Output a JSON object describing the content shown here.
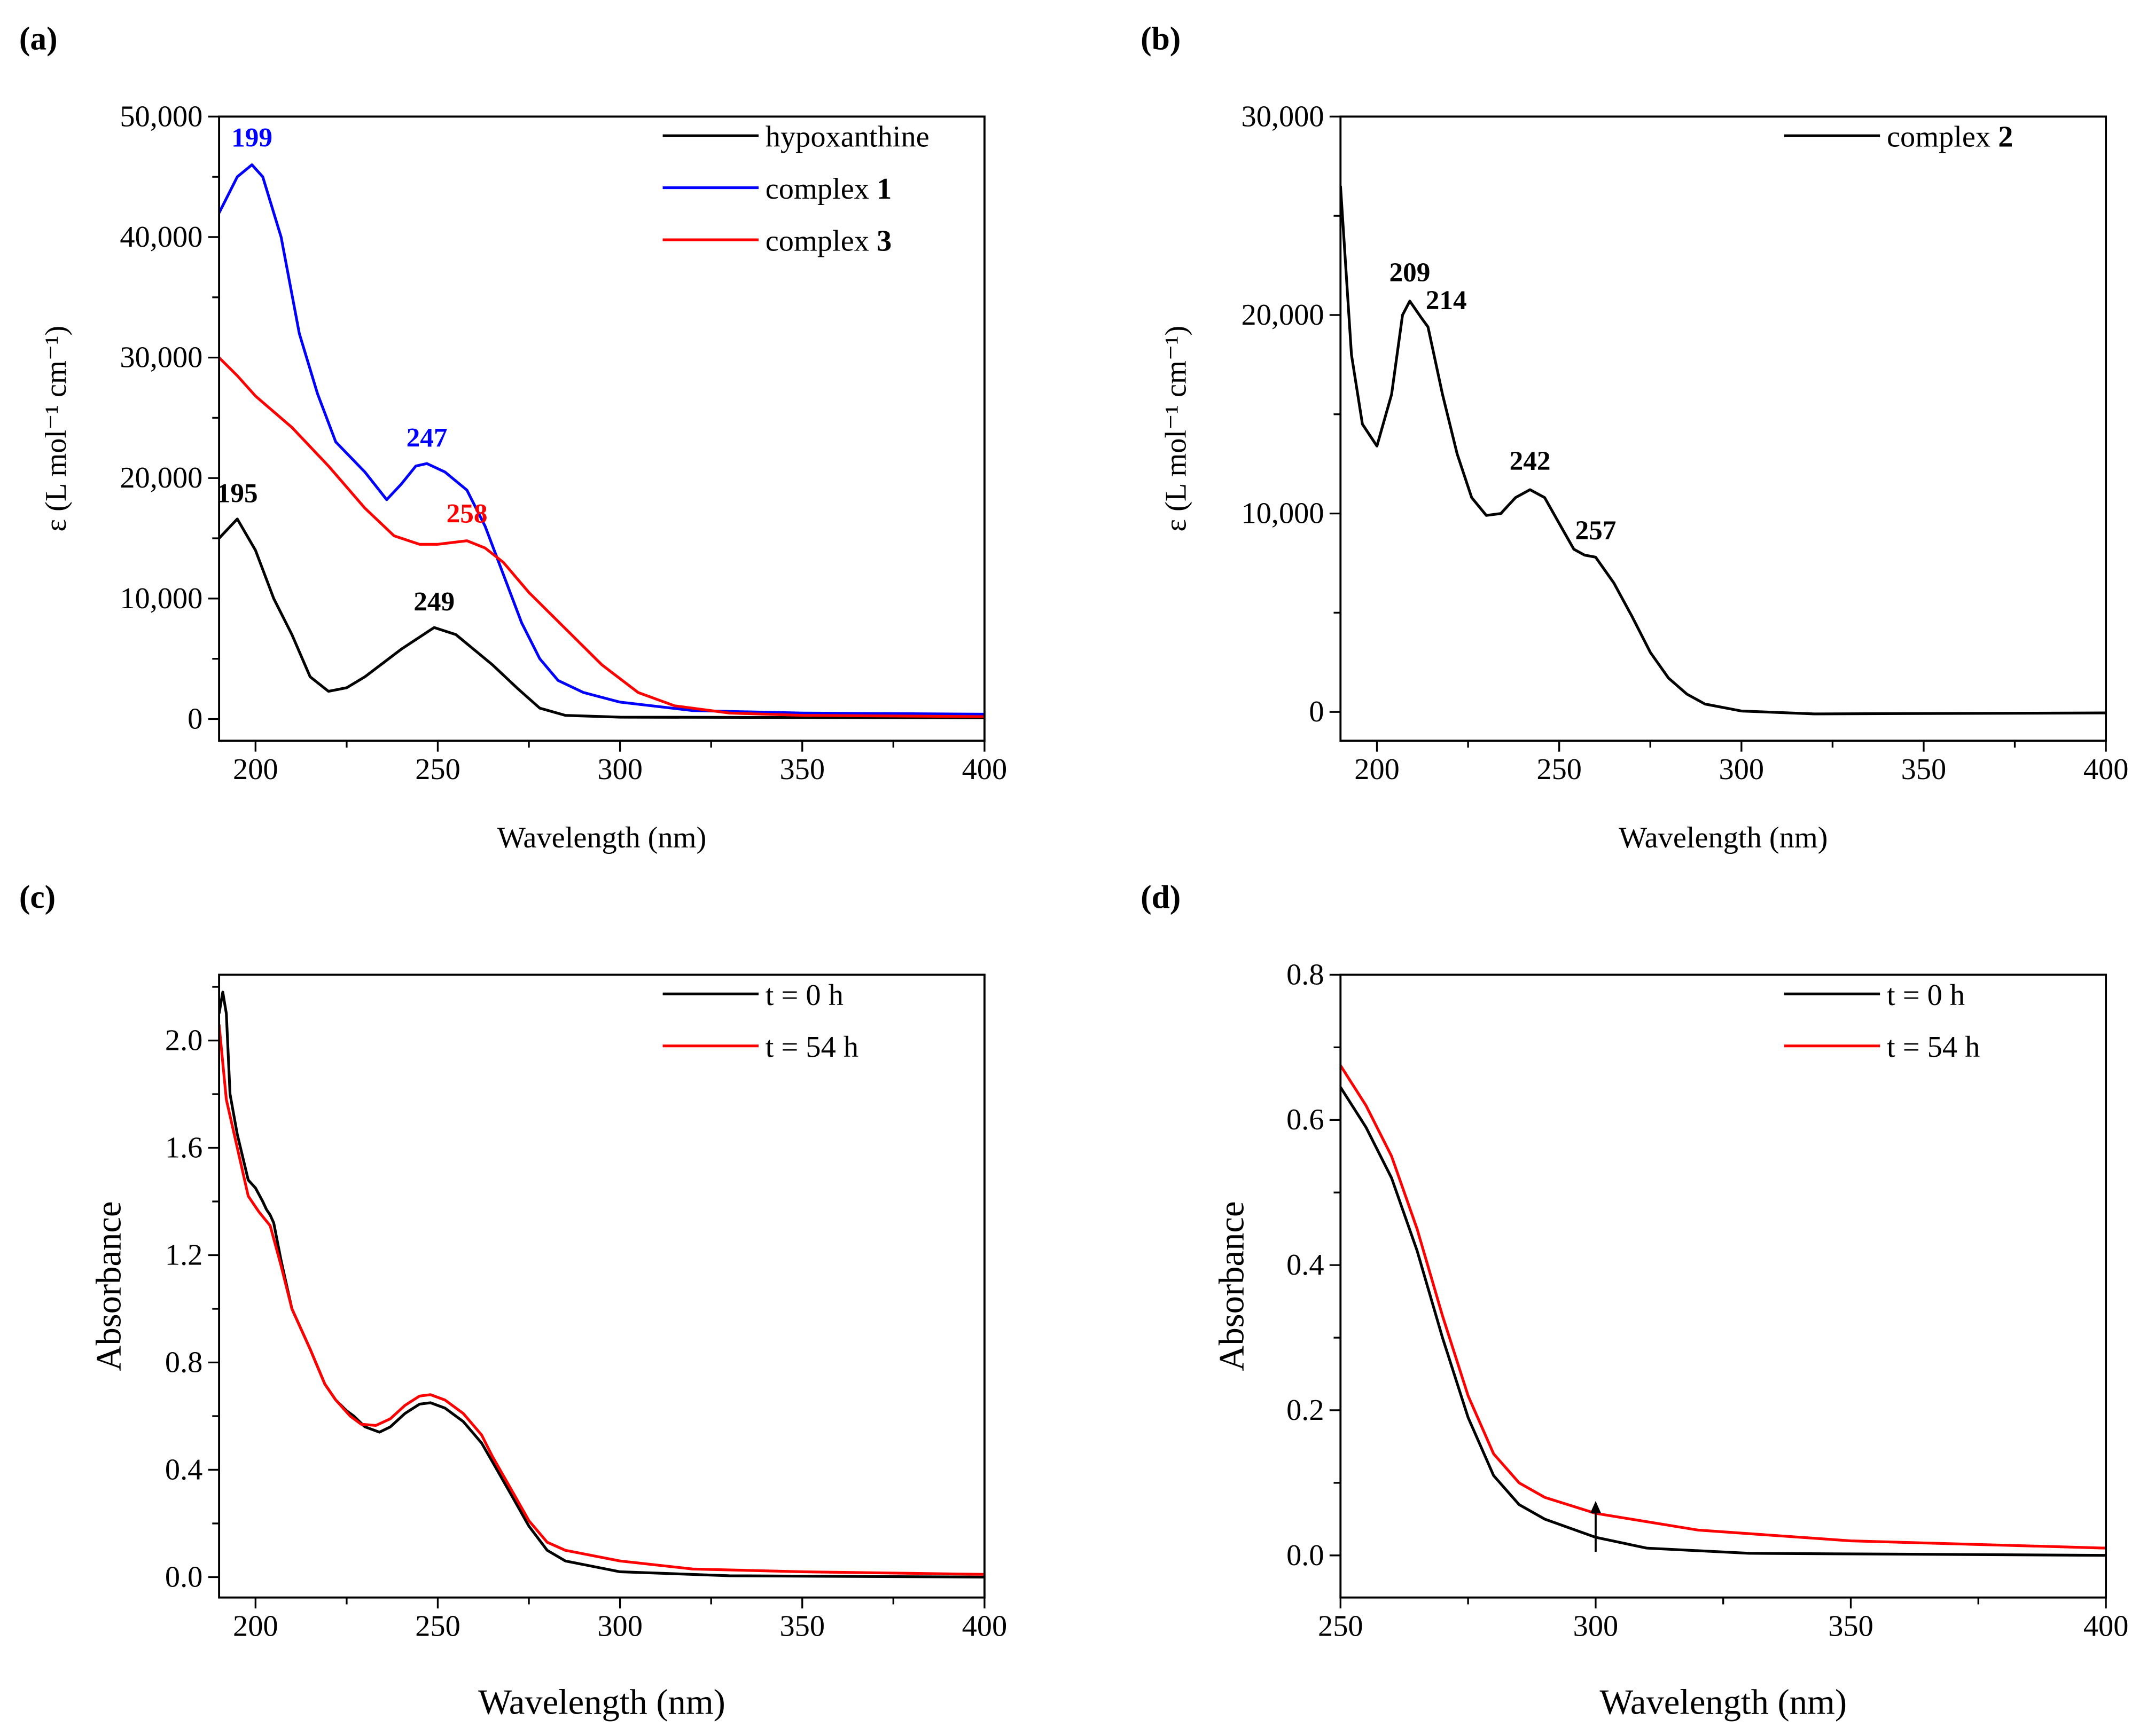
{
  "chart_data": [
    {
      "panel": "(a)",
      "type": "line",
      "xlabel": "Wavelength (nm)",
      "ylabel": "ε (L mol⁻¹ cm⁻¹)",
      "xlim": [
        190,
        400
      ],
      "ylim": [
        -1800,
        50000
      ],
      "xticks": [
        200,
        250,
        300,
        350,
        400
      ],
      "xminor": 25,
      "yticks": [
        0,
        10000,
        20000,
        30000,
        40000,
        50000
      ],
      "yminor": 5000,
      "ytick_labels": [
        "0",
        "10,000",
        "20,000",
        "30,000",
        "40,000",
        "50,000"
      ],
      "legend_position": "top-right",
      "series": [
        {
          "name": "hypoxanthine",
          "bold": "",
          "color": "#000000",
          "x": [
            190,
            195,
            200,
            205,
            210,
            215,
            220,
            225,
            230,
            240,
            249,
            255,
            265,
            272,
            278,
            285,
            300,
            400
          ],
          "y": [
            15000,
            16600,
            14000,
            10000,
            7000,
            3500,
            2300,
            2600,
            3500,
            5800,
            7600,
            7000,
            4500,
            2500,
            900,
            300,
            150,
            100
          ]
        },
        {
          "name": "complex ",
          "bold": "1",
          "color": "#0000ff",
          "x": [
            190,
            195,
            199,
            202,
            207,
            212,
            217,
            222,
            230,
            236,
            240,
            244,
            247,
            252,
            258,
            263,
            268,
            273,
            278,
            283,
            290,
            300,
            320,
            350,
            400
          ],
          "y": [
            42000,
            45000,
            46000,
            45000,
            40000,
            32000,
            27000,
            23000,
            20500,
            18200,
            19500,
            21000,
            21200,
            20500,
            19000,
            16000,
            12000,
            8000,
            5000,
            3200,
            2200,
            1400,
            700,
            500,
            400
          ]
        },
        {
          "name": "complex ",
          "bold": "3",
          "color": "#ff0000",
          "x": [
            190,
            195,
            200,
            210,
            220,
            230,
            238,
            245,
            250,
            258,
            263,
            268,
            275,
            285,
            295,
            305,
            315,
            330,
            350,
            400
          ],
          "y": [
            30000,
            28500,
            26800,
            24200,
            21000,
            17500,
            15200,
            14500,
            14500,
            14800,
            14200,
            13000,
            10500,
            7500,
            4500,
            2200,
            1100,
            500,
            300,
            200
          ]
        }
      ],
      "annotations": [
        {
          "text": "199",
          "x": 199,
          "y": 47500,
          "color": "#0000ff"
        },
        {
          "text": "247",
          "x": 247,
          "y": 22600,
          "color": "#0000ff"
        },
        {
          "text": "258",
          "x": 258,
          "y": 16300,
          "color": "#ff0000"
        },
        {
          "text": "195",
          "x": 195,
          "y": 18000,
          "color": "#000000"
        },
        {
          "text": "249",
          "x": 249,
          "y": 9000,
          "color": "#000000"
        }
      ]
    },
    {
      "panel": "(b)",
      "type": "line",
      "xlabel": "Wavelength (nm)",
      "ylabel": "ε (L mol⁻¹ cm⁻¹)",
      "xlim": [
        190,
        400
      ],
      "ylim": [
        -1450,
        30000
      ],
      "xticks": [
        200,
        250,
        300,
        350,
        400
      ],
      "xminor": 25,
      "yticks": [
        0,
        10000,
        20000,
        30000
      ],
      "yminor": 5000,
      "ytick_labels": [
        "0",
        "10,000",
        "20,000",
        "30,000"
      ],
      "legend_position": "top-right",
      "series": [
        {
          "name": "complex ",
          "bold": "2",
          "color": "#000000",
          "x": [
            190,
            193,
            196,
            200,
            204,
            207,
            209,
            212,
            214,
            218,
            222,
            226,
            230,
            234,
            238,
            242,
            246,
            250,
            254,
            257,
            260,
            265,
            270,
            275,
            280,
            285,
            290,
            300,
            320,
            400
          ],
          "y": [
            26500,
            18000,
            14500,
            13400,
            16000,
            20000,
            20700,
            19900,
            19400,
            16000,
            13000,
            10800,
            9900,
            10000,
            10800,
            11200,
            10800,
            9500,
            8200,
            7900,
            7800,
            6500,
            4800,
            3000,
            1700,
            900,
            400,
            50,
            -100,
            -50
          ]
        }
      ],
      "annotations": [
        {
          "text": "209",
          "x": 209,
          "y": 21700,
          "color": "#000000"
        },
        {
          "text": "214",
          "x": 219,
          "y": 20300,
          "color": "#000000"
        },
        {
          "text": "242",
          "x": 242,
          "y": 12200,
          "color": "#000000"
        },
        {
          "text": "257",
          "x": 260,
          "y": 8700,
          "color": "#000000"
        }
      ]
    },
    {
      "panel": "(c)",
      "type": "line",
      "xlabel": "Wavelength (nm)",
      "ylabel": "Absorbance",
      "xlim": [
        190,
        400
      ],
      "ylim": [
        -0.076,
        2.245
      ],
      "xticks": [
        200,
        250,
        300,
        350,
        400
      ],
      "xminor": 25,
      "yticks": [
        0,
        0.4,
        0.8,
        1.2,
        1.6,
        2.0
      ],
      "yminor": 0.2,
      "ytick_labels": [
        "0.0",
        "0.4",
        "0.8",
        "1.2",
        "1.6",
        "2.0"
      ],
      "legend_position": "top-right",
      "series": [
        {
          "name": "t = 0 h",
          "bold": "",
          "color": "#000000",
          "x": [
            190,
            191,
            192,
            193,
            195,
            198,
            200,
            202,
            203,
            204,
            205,
            207,
            210,
            215,
            219,
            222,
            225,
            227,
            230,
            234,
            237,
            241,
            245,
            248,
            252,
            257,
            262,
            265,
            270,
            275,
            280,
            285,
            300,
            330,
            400
          ],
          "y": [
            2.1,
            2.18,
            2.1,
            1.8,
            1.65,
            1.48,
            1.45,
            1.4,
            1.37,
            1.35,
            1.32,
            1.18,
            1.0,
            0.85,
            0.72,
            0.66,
            0.62,
            0.6,
            0.56,
            0.54,
            0.56,
            0.61,
            0.645,
            0.65,
            0.63,
            0.58,
            0.5,
            0.43,
            0.31,
            0.19,
            0.1,
            0.06,
            0.02,
            0.005,
            0
          ]
        },
        {
          "name": "t = 54 h",
          "bold": "",
          "color": "#ff0000",
          "x": [
            190,
            192,
            195,
            198,
            201,
            204,
            207,
            210,
            215,
            219,
            222,
            226,
            229,
            233,
            237,
            241,
            245,
            248,
            252,
            257,
            262,
            265,
            270,
            275,
            280,
            285,
            300,
            320,
            350,
            400
          ],
          "y": [
            2.06,
            1.78,
            1.6,
            1.42,
            1.36,
            1.31,
            1.16,
            1.0,
            0.85,
            0.72,
            0.66,
            0.6,
            0.57,
            0.565,
            0.59,
            0.64,
            0.675,
            0.68,
            0.66,
            0.61,
            0.53,
            0.45,
            0.33,
            0.21,
            0.13,
            0.1,
            0.06,
            0.03,
            0.02,
            0.01
          ]
        }
      ],
      "annotations": []
    },
    {
      "panel": "(d)",
      "type": "line",
      "xlabel": "Wavelength (nm)",
      "ylabel": "Absorbance",
      "xlim": [
        250,
        400
      ],
      "ylim": [
        -0.058,
        0.8
      ],
      "xticks": [
        250,
        300,
        350,
        400
      ],
      "xminor": 25,
      "yticks": [
        0,
        0.2,
        0.4,
        0.6,
        0.8
      ],
      "yminor": 0.1,
      "ytick_labels": [
        "0.0",
        "0.2",
        "0.4",
        "0.6",
        "0.8"
      ],
      "legend_position": "top-right",
      "series": [
        {
          "name": "t = 0 h",
          "bold": "",
          "color": "#000000",
          "x": [
            250,
            255,
            260,
            265,
            270,
            275,
            280,
            285,
            290,
            300,
            310,
            330,
            400
          ],
          "y": [
            0.645,
            0.59,
            0.52,
            0.42,
            0.3,
            0.19,
            0.11,
            0.07,
            0.05,
            0.025,
            0.01,
            0.003,
            0
          ]
        },
        {
          "name": "t = 54 h",
          "bold": "",
          "color": "#ff0000",
          "x": [
            250,
            255,
            260,
            265,
            270,
            275,
            280,
            285,
            290,
            300,
            320,
            350,
            400
          ],
          "y": [
            0.675,
            0.62,
            0.55,
            0.45,
            0.33,
            0.22,
            0.14,
            0.1,
            0.08,
            0.058,
            0.035,
            0.02,
            0.01
          ]
        }
      ],
      "annotations": [],
      "arrow": {
        "x": 300,
        "y_from": 0.005,
        "y_to": 0.075
      }
    }
  ]
}
